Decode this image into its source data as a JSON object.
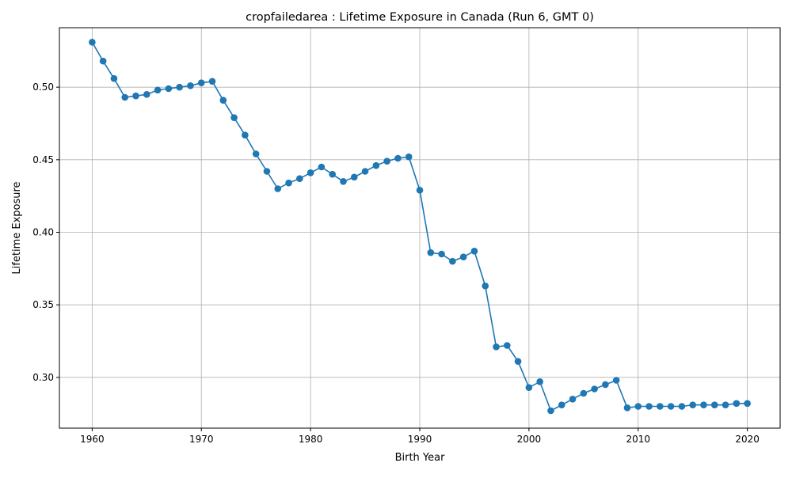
{
  "chart_data": {
    "type": "line",
    "title": "cropfailedarea : Lifetime Exposure in Canada (Run 6, GMT 0)",
    "xlabel": "Birth Year",
    "ylabel": "Lifetime Exposure",
    "xlim": [
      1957,
      2023
    ],
    "ylim": [
      0.265,
      0.541
    ],
    "xticks": [
      1960,
      1970,
      1980,
      1990,
      2000,
      2010,
      2020
    ],
    "xtick_labels": [
      "1960",
      "1970",
      "1980",
      "1990",
      "2000",
      "2010",
      "2020"
    ],
    "yticks": [
      0.3,
      0.35,
      0.4,
      0.45,
      0.5
    ],
    "ytick_labels": [
      "0.30",
      "0.35",
      "0.40",
      "0.45",
      "0.50"
    ],
    "grid": true,
    "marker": "circle",
    "color": "#1f77b4",
    "x": [
      1960,
      1961,
      1962,
      1963,
      1964,
      1965,
      1966,
      1967,
      1968,
      1969,
      1970,
      1971,
      1972,
      1973,
      1974,
      1975,
      1976,
      1977,
      1978,
      1979,
      1980,
      1981,
      1982,
      1983,
      1984,
      1985,
      1986,
      1987,
      1988,
      1989,
      1990,
      1991,
      1992,
      1993,
      1994,
      1995,
      1996,
      1997,
      1998,
      1999,
      2000,
      2001,
      2002,
      2003,
      2004,
      2005,
      2006,
      2007,
      2008,
      2009,
      2010,
      2011,
      2012,
      2013,
      2014,
      2015,
      2016,
      2017,
      2018,
      2019,
      2020
    ],
    "y": [
      0.531,
      0.518,
      0.506,
      0.493,
      0.494,
      0.495,
      0.498,
      0.499,
      0.5,
      0.501,
      0.503,
      0.504,
      0.491,
      0.479,
      0.467,
      0.454,
      0.442,
      0.43,
      0.434,
      0.437,
      0.441,
      0.445,
      0.44,
      0.435,
      0.438,
      0.442,
      0.446,
      0.449,
      0.451,
      0.452,
      0.429,
      0.386,
      0.385,
      0.38,
      0.383,
      0.387,
      0.363,
      0.321,
      0.322,
      0.311,
      0.293,
      0.297,
      0.277,
      0.281,
      0.285,
      0.289,
      0.292,
      0.295,
      0.298,
      0.279,
      0.28,
      0.28,
      0.28,
      0.28,
      0.28,
      0.281,
      0.281,
      0.281,
      0.281,
      0.282,
      0.282
    ]
  }
}
